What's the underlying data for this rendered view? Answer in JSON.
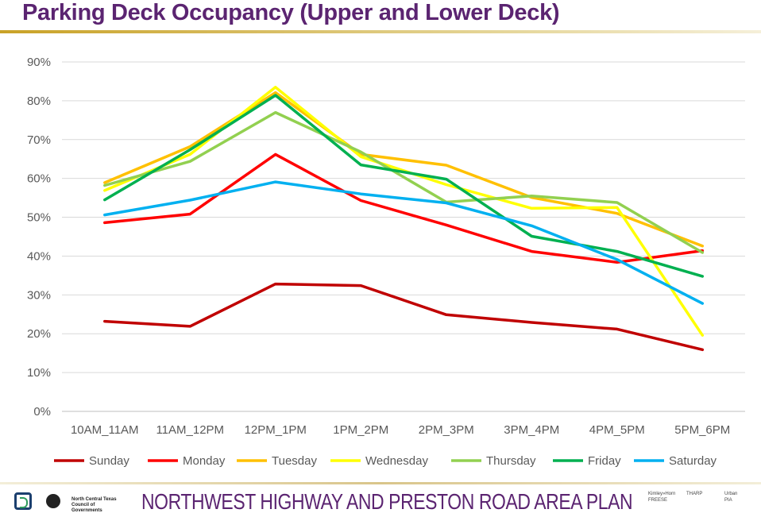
{
  "title": "Parking Deck Occupancy (Upper and Lower Deck)",
  "footer": {
    "plan_name": "NORTHWEST HIGHWAY AND PRESTON ROAD AREA PLAN",
    "org_name": "North Central Texas Council of Governments",
    "partner_1_a": "Kimley»Horn",
    "partner_1_b": "FREESE",
    "partner_2_a": "THARP",
    "partner_3_a": "Urban",
    "partner_3_b": "PIA"
  },
  "chart_data": {
    "type": "line",
    "categories": [
      "10AM_11AM",
      "11AM_12PM",
      "12PM_1PM",
      "1PM_2PM",
      "2PM_3PM",
      "3PM_4PM",
      "4PM_5PM",
      "5PM_6PM"
    ],
    "y_ticks": [
      "0%",
      "10%",
      "20%",
      "30%",
      "40%",
      "50%",
      "60%",
      "70%",
      "80%",
      "90%"
    ],
    "ylim": [
      0,
      90
    ],
    "grid": true,
    "legend_position": "bottom",
    "series": [
      {
        "name": "Sunday",
        "color": "#c00000",
        "values": [
          23.2,
          21.9,
          32.8,
          32.4,
          24.9,
          22.9,
          21.2,
          15.9
        ]
      },
      {
        "name": "Monday",
        "color": "#ff0000",
        "values": [
          48.6,
          50.8,
          66.2,
          54.3,
          48.0,
          41.2,
          38.4,
          41.4
        ]
      },
      {
        "name": "Tuesday",
        "color": "#ffc000",
        "values": [
          58.9,
          68.2,
          82.1,
          66.2,
          63.4,
          55.1,
          51.0,
          42.6
        ]
      },
      {
        "name": "Wednesday",
        "color": "#ffff00",
        "values": [
          56.9,
          66.2,
          83.5,
          65.6,
          58.4,
          52.3,
          52.5,
          19.6
        ]
      },
      {
        "name": "Thursday",
        "color": "#92d050",
        "values": [
          58.2,
          64.4,
          77.0,
          66.8,
          53.9,
          55.5,
          53.8,
          40.9
        ]
      },
      {
        "name": "Friday",
        "color": "#00b050",
        "values": [
          54.5,
          67.4,
          81.4,
          63.5,
          59.8,
          45.1,
          41.2,
          34.8
        ]
      },
      {
        "name": "Saturday",
        "color": "#00b0f0",
        "values": [
          50.6,
          54.4,
          59.1,
          56.0,
          53.7,
          47.8,
          39.1,
          27.8
        ]
      }
    ]
  }
}
